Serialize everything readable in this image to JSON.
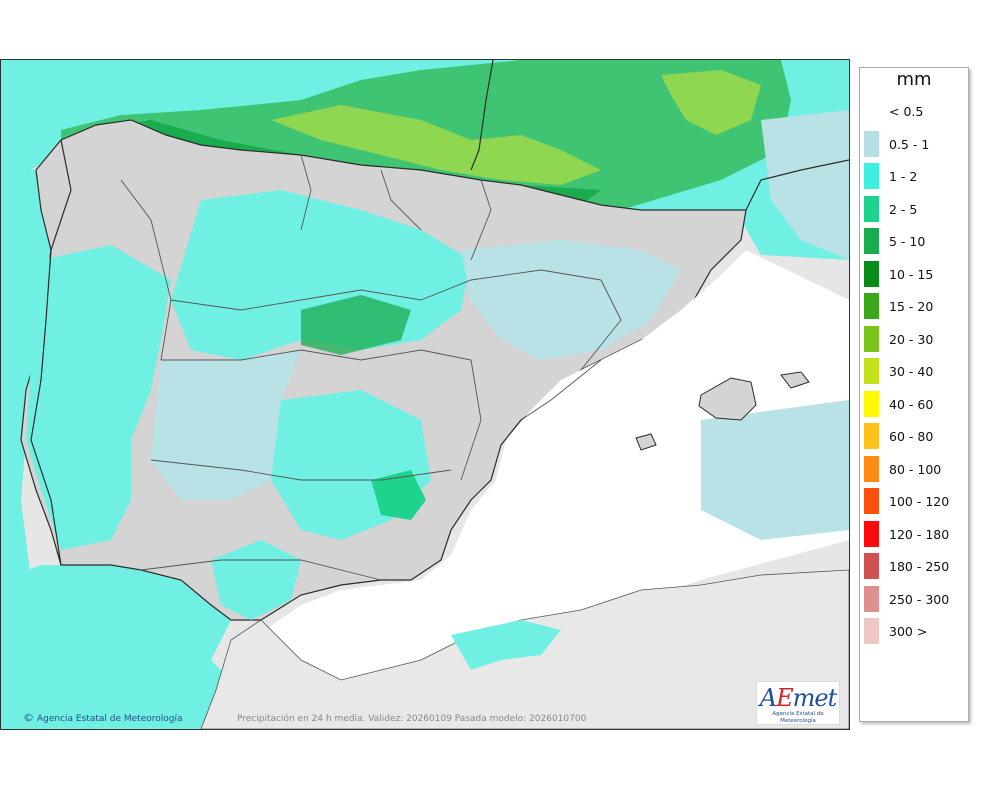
{
  "legend": {
    "title": "mm",
    "items": [
      {
        "label": "< 0.5",
        "color": "#ffffff"
      },
      {
        "label": "0.5 - 1",
        "color": "#b7dfe5"
      },
      {
        "label": "1 - 2",
        "color": "#3ff0e0"
      },
      {
        "label": "2 - 5",
        "color": "#1ed38e"
      },
      {
        "label": "5 - 10",
        "color": "#1aad4f"
      },
      {
        "label": "10 - 15",
        "color": "#0a8c1a"
      },
      {
        "label": "15 - 20",
        "color": "#3ba81c"
      },
      {
        "label": "20 - 30",
        "color": "#7bc41b"
      },
      {
        "label": "30 - 40",
        "color": "#c4e21a"
      },
      {
        "label": "40 - 60",
        "color": "#fff800"
      },
      {
        "label": "60 - 80",
        "color": "#ffbf1c"
      },
      {
        "label": "80 - 100",
        "color": "#ff8a13"
      },
      {
        "label": "100 - 120",
        "color": "#ff4f0c"
      },
      {
        "label": "120 - 180",
        "color": "#ff0a0a"
      },
      {
        "label": "180 - 250",
        "color": "#cf5353"
      },
      {
        "label": "250 - 300",
        "color": "#de8f8f"
      },
      {
        "label": "300 >",
        "color": "#efc7c7"
      }
    ]
  },
  "map": {
    "copyright": "Agencia Estatal de Meteorología",
    "copyright_symbol": "©",
    "validity_text": "Precipitación en 24 h media. Validez: 20260109 Pasada modelo: 2026010700",
    "logo_text_a": "A",
    "logo_text_e": "E",
    "logo_text_rest": "met",
    "logo_subtitle": "Agencia Estatal de Meteorología",
    "colors": {
      "sea_cyan": "#6ff0e3",
      "sea_light": "#b8e2e6",
      "land_dry": "#d8d8d8",
      "sea_dry": "#ffffff",
      "outside": "#e8e8e8",
      "border": "#2b2b2b"
    }
  }
}
